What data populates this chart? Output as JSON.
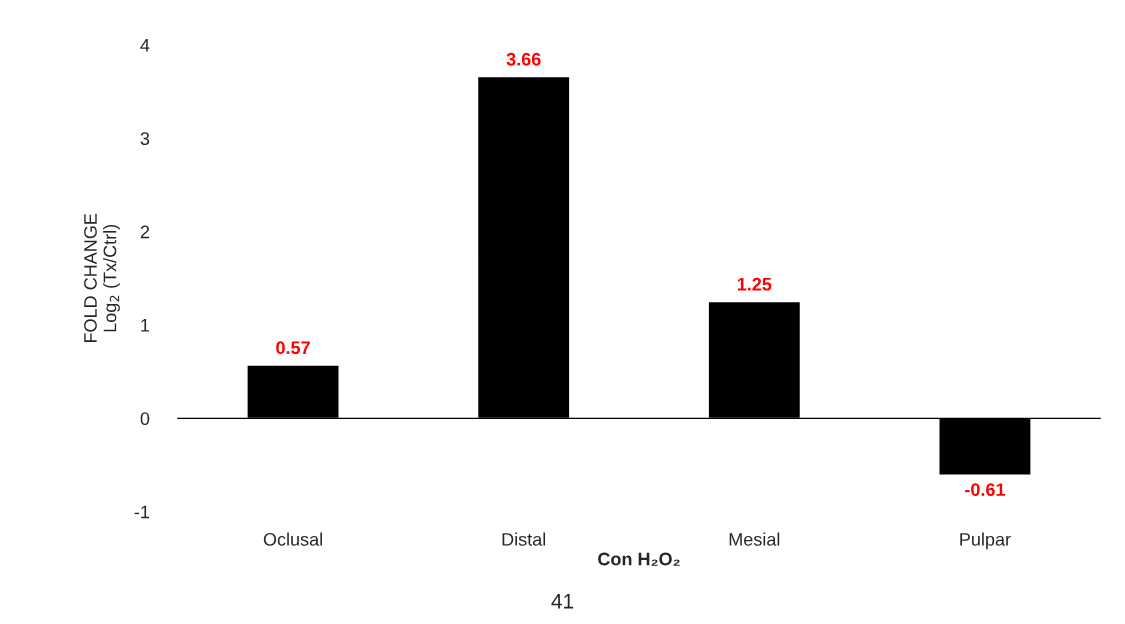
{
  "chart_data": {
    "type": "bar",
    "categories": [
      "Oclusal",
      "Distal",
      "Mesial",
      "Pulpar"
    ],
    "values": [
      0.57,
      3.66,
      1.25,
      -0.61
    ],
    "color": "#000000",
    "xlabel": "Con H₂O₂",
    "ylabel": "FOLD CHANGE\nLog$_{2}$ (Tx/Ctrl)",
    "ylim": [
      -1,
      4
    ],
    "yticks": [
      -1,
      0,
      1,
      2,
      3,
      4
    ],
    "data_labels": true,
    "legend": false,
    "annotations": [
      "41"
    ]
  }
}
